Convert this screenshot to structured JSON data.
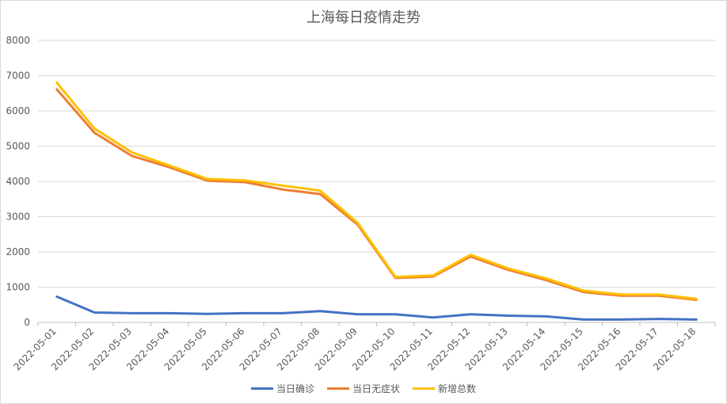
{
  "chart_data": {
    "type": "line",
    "title": "上海每日疫情走势",
    "xlabel": "",
    "ylabel": "",
    "ylim": [
      0,
      8000
    ],
    "y_ticks": [
      0,
      1000,
      2000,
      3000,
      4000,
      5000,
      6000,
      7000,
      8000
    ],
    "grid": true,
    "legend_position": "bottom",
    "categories": [
      "2022-05-01",
      "2022-05-02",
      "2022-05-03",
      "2022-05-04",
      "2022-05-05",
      "2022-05-06",
      "2022-05-07",
      "2022-05-08",
      "2022-05-09",
      "2022-05-10",
      "2022-05-11",
      "2022-05-12",
      "2022-05-13",
      "2022-05-14",
      "2022-05-15",
      "2022-05-16",
      "2022-05-17",
      "2022-05-18"
    ],
    "series": [
      {
        "name": "当日确诊",
        "color": "#4472c4",
        "values": [
          730,
          280,
          260,
          260,
          240,
          260,
          260,
          320,
          230,
          230,
          140,
          230,
          190,
          170,
          80,
          80,
          100,
          80
        ]
      },
      {
        "name": "当日无症状",
        "color": "#ed7d31",
        "values": [
          6610,
          5380,
          4720,
          4400,
          4020,
          3980,
          3770,
          3640,
          2770,
          1260,
          1300,
          1870,
          1490,
          1200,
          860,
          760,
          760,
          640
        ]
      },
      {
        "name": "新增总数",
        "color": "#ffc000",
        "values": [
          6800,
          5500,
          4820,
          4450,
          4070,
          4030,
          3880,
          3740,
          2820,
          1290,
          1330,
          1920,
          1530,
          1250,
          900,
          790,
          790,
          670
        ]
      }
    ]
  }
}
